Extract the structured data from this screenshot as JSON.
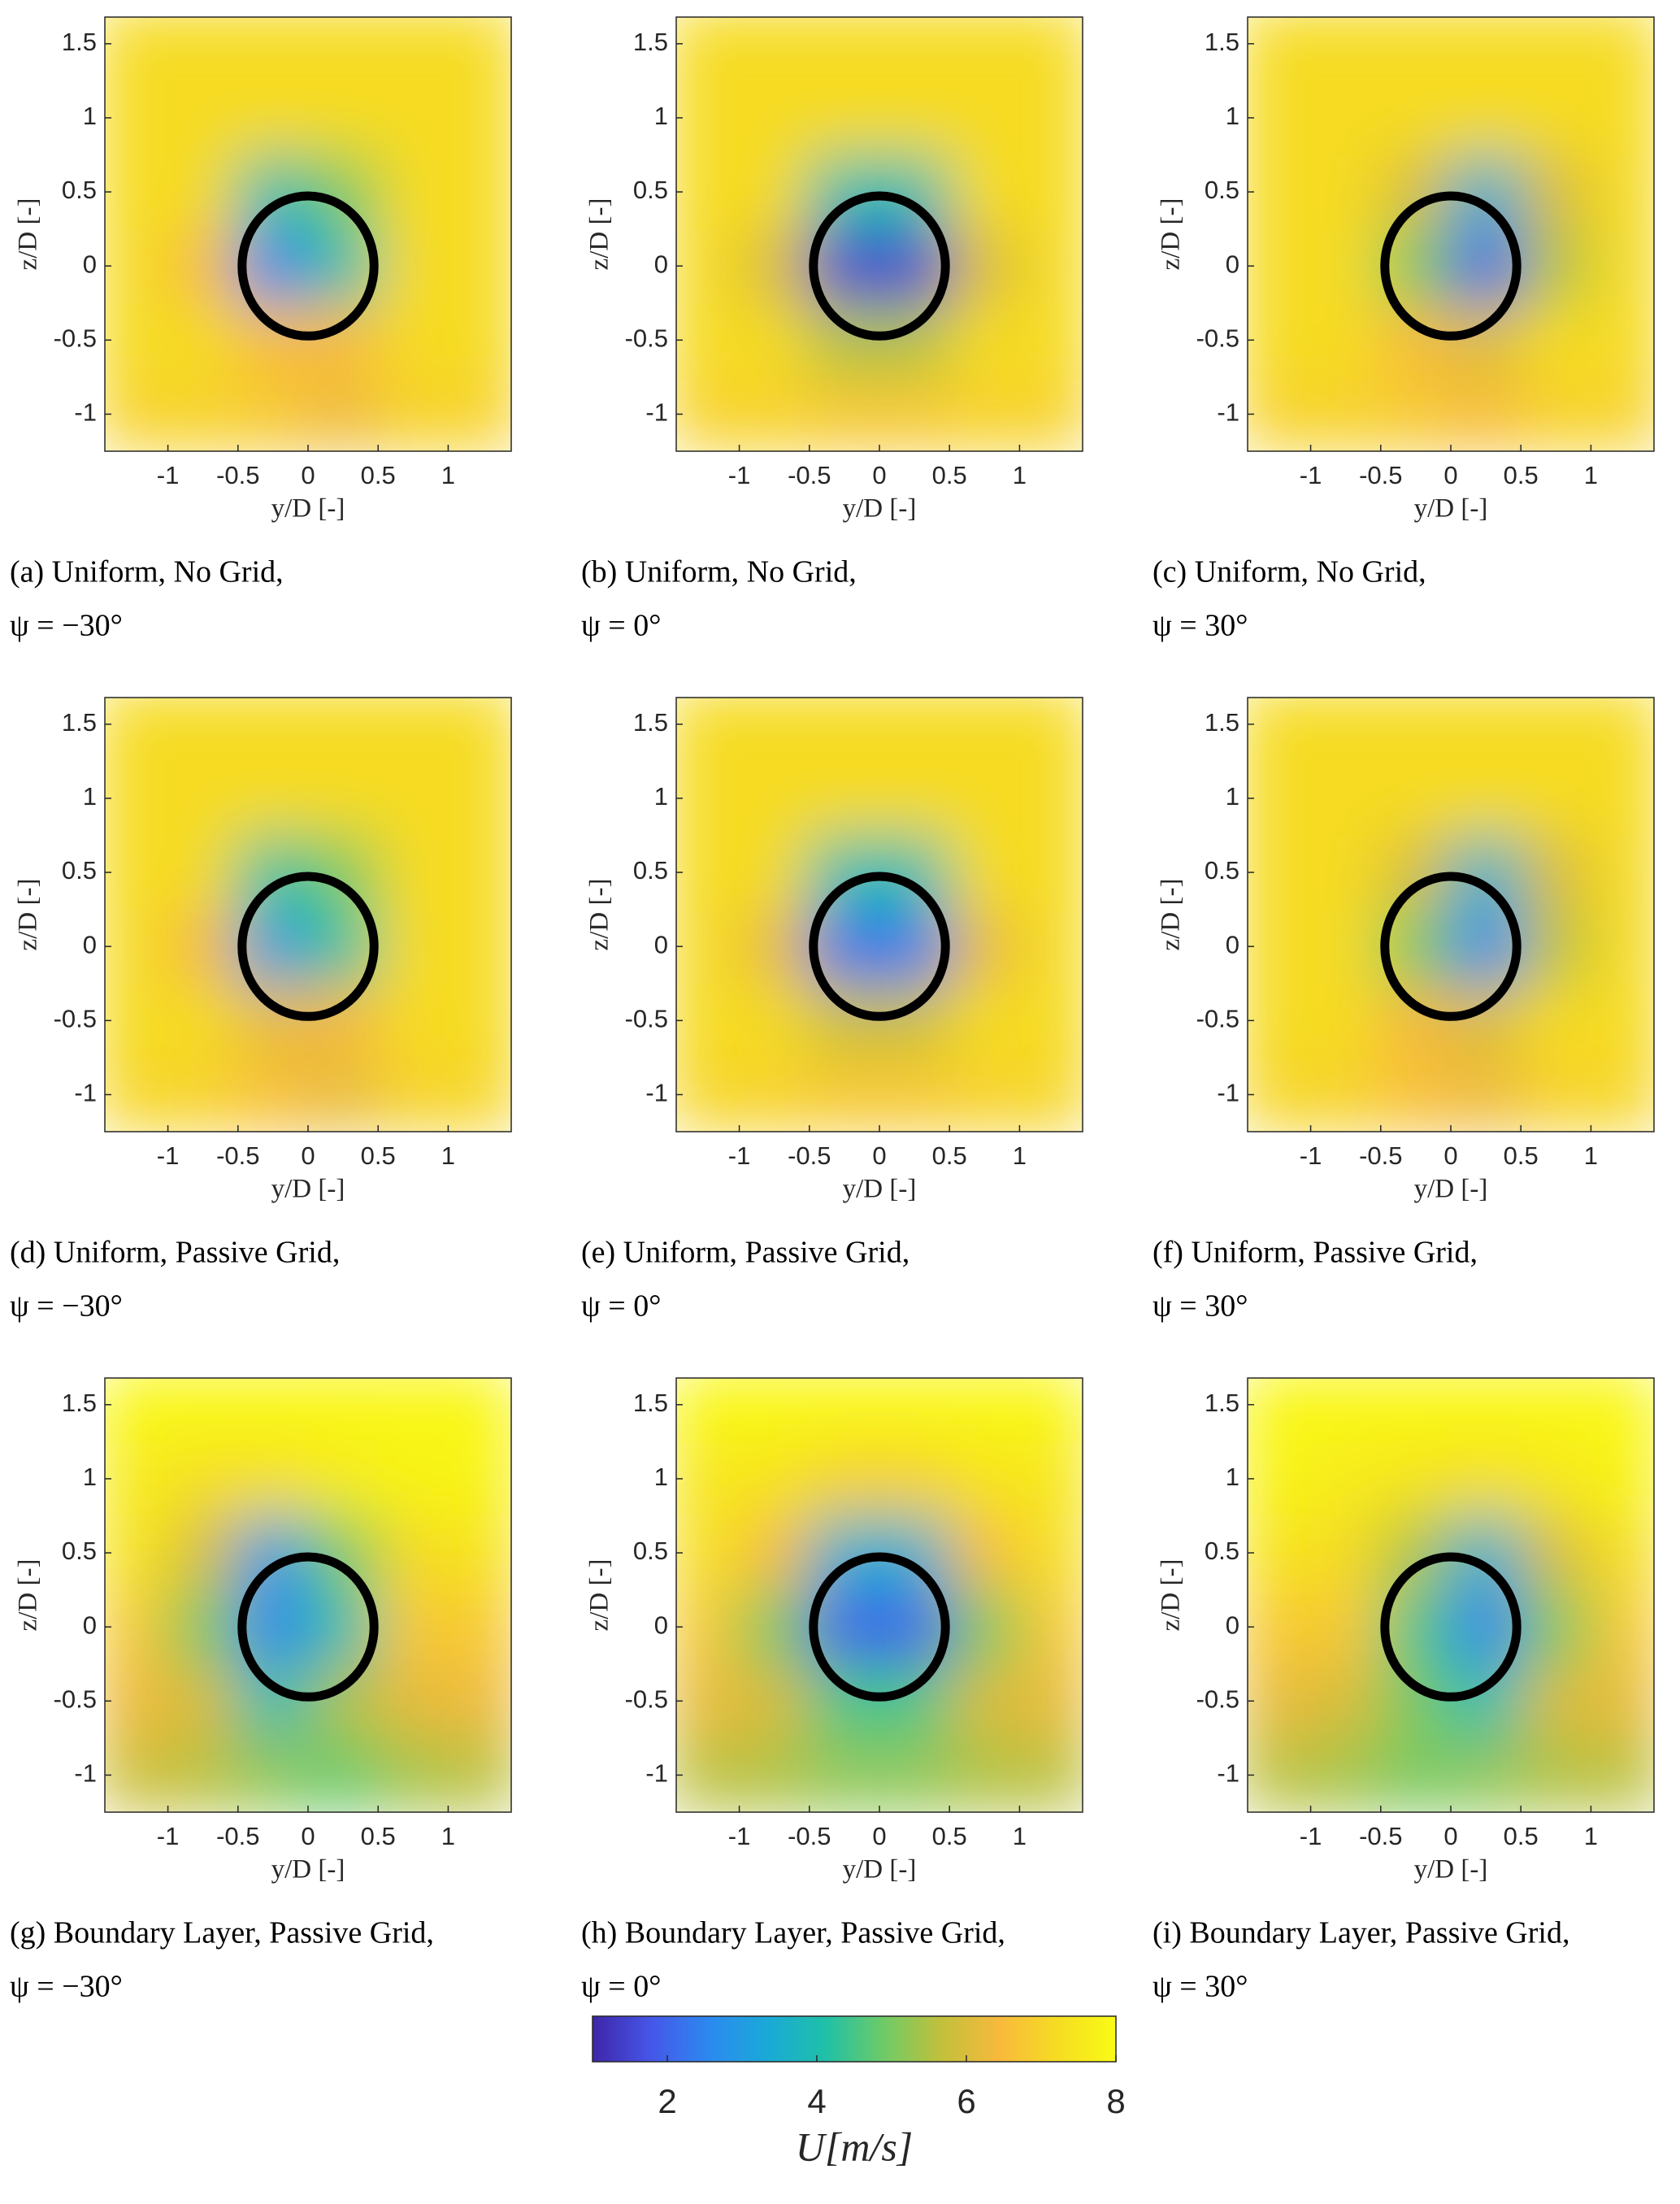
{
  "chart_data": [
    {
      "type": "contour",
      "caption": "(a) Uniform, No Grid,",
      "subcaption": "ψ = −30°",
      "xlabel": "y/D [-]",
      "ylabel": "z/D [-]",
      "xlim": [
        -1.45,
        1.45
      ],
      "ylim": [
        -1.25,
        1.68
      ],
      "xticks": [
        -1,
        -0.5,
        0,
        0.5,
        1
      ],
      "yticks": [
        -1,
        -0.5,
        0,
        0.5,
        1,
        1.5
      ],
      "x": [
        -1.25,
        -0.75,
        -0.25,
        0.25,
        0.75,
        1.25
      ],
      "y": [
        -1,
        -0.5,
        0,
        0.5,
        1,
        1.5
      ],
      "z": [
        [
          7,
          7,
          6.8,
          6.3,
          7,
          7
        ],
        [
          7.2,
          7.2,
          6.5,
          6.5,
          7.2,
          7.2
        ],
        [
          7.2,
          6.5,
          2.5,
          4,
          7.2,
          7.2
        ],
        [
          7.2,
          7.2,
          4,
          5,
          7.2,
          7.2
        ],
        [
          7.2,
          7.2,
          7.2,
          7.2,
          7.2,
          7.2
        ],
        [
          7.2,
          7.2,
          7.2,
          7.2,
          7.2,
          7.2
        ]
      ]
    },
    {
      "type": "contour",
      "caption": "(b) Uniform, No Grid,",
      "subcaption": "ψ = 0°",
      "xlabel": "y/D [-]",
      "ylabel": "z/D [-]",
      "xlim": [
        -1.45,
        1.45
      ],
      "ylim": [
        -1.25,
        1.68
      ],
      "xticks": [
        -1,
        -0.5,
        0,
        0.5,
        1
      ],
      "yticks": [
        -1,
        -0.5,
        0,
        0.5,
        1,
        1.5
      ],
      "x": [
        -1.25,
        -0.75,
        -0.25,
        0.25,
        0.75,
        1.25
      ],
      "y": [
        -1,
        -0.5,
        0,
        0.5,
        1,
        1.5
      ],
      "z": [
        [
          7,
          7,
          6.8,
          6.8,
          7,
          7
        ],
        [
          7.2,
          7.2,
          5.5,
          5.5,
          7.2,
          7.2
        ],
        [
          7.2,
          6,
          1.5,
          1.5,
          6,
          7.2
        ],
        [
          7.2,
          7.2,
          4,
          4,
          7.2,
          7.2
        ],
        [
          7.2,
          7.2,
          7.2,
          7.2,
          7.2,
          7.2
        ],
        [
          7.2,
          7.2,
          7.2,
          7.2,
          7.2,
          7.2
        ]
      ]
    },
    {
      "type": "contour",
      "caption": "(c) Uniform, No Grid,",
      "subcaption": "ψ = 30°",
      "xlabel": "y/D [-]",
      "ylabel": "z/D [-]",
      "xlim": [
        -1.45,
        1.45
      ],
      "ylim": [
        -1.25,
        1.68
      ],
      "xticks": [
        -1,
        -0.5,
        0,
        0.5,
        1
      ],
      "yticks": [
        -1,
        -0.5,
        0,
        0.5,
        1,
        1.5
      ],
      "x": [
        -1.25,
        -0.75,
        -0.25,
        0.25,
        0.75,
        1.25
      ],
      "y": [
        -1,
        -0.5,
        0,
        0.5,
        1,
        1.5
      ],
      "z": [
        [
          7,
          7,
          6.8,
          6.5,
          7,
          7
        ],
        [
          7.2,
          7.2,
          6.5,
          6,
          7.2,
          7.2
        ],
        [
          7.2,
          7.2,
          5,
          2,
          5.5,
          7.2
        ],
        [
          7.2,
          7.2,
          6,
          3.5,
          6,
          7.2
        ],
        [
          7.2,
          7.2,
          7.2,
          7.2,
          7.2,
          7.2
        ],
        [
          7.2,
          7.2,
          7.2,
          7.2,
          7.2,
          7.2
        ]
      ]
    },
    {
      "type": "contour",
      "caption": "(d) Uniform, Passive Grid,",
      "subcaption": "ψ = −30°",
      "xlabel": "y/D [-]",
      "ylabel": "z/D [-]",
      "xlim": [
        -1.45,
        1.45
      ],
      "ylim": [
        -1.25,
        1.68
      ],
      "xticks": [
        -1,
        -0.5,
        0,
        0.5,
        1
      ],
      "yticks": [
        -1,
        -0.5,
        0,
        0.5,
        1,
        1.5
      ],
      "x": [
        -1.25,
        -0.75,
        -0.25,
        0.25,
        0.75,
        1.25
      ],
      "y": [
        -1,
        -0.5,
        0,
        0.5,
        1,
        1.5
      ],
      "z": [
        [
          7.1,
          7,
          6.6,
          6.2,
          7,
          7.1
        ],
        [
          7.2,
          7.2,
          6.2,
          6.4,
          7.2,
          7.2
        ],
        [
          7.2,
          6.4,
          3,
          4.2,
          7.2,
          7.2
        ],
        [
          7.2,
          7.2,
          4.2,
          5,
          7.2,
          7.2
        ],
        [
          7.2,
          7.2,
          7.2,
          7.2,
          7.2,
          7.2
        ],
        [
          7.2,
          7.2,
          7.2,
          7.2,
          7.2,
          7.2
        ]
      ]
    },
    {
      "type": "contour",
      "caption": "(e) Uniform, Passive Grid,",
      "subcaption": "ψ = 0°",
      "xlabel": "y/D [-]",
      "ylabel": "z/D [-]",
      "xlim": [
        -1.45,
        1.45
      ],
      "ylim": [
        -1.25,
        1.68
      ],
      "xticks": [
        -1,
        -0.5,
        0,
        0.5,
        1
      ],
      "yticks": [
        -1,
        -0.5,
        0,
        0.5,
        1,
        1.5
      ],
      "x": [
        -1.25,
        -0.75,
        -0.25,
        0.25,
        0.75,
        1.25
      ],
      "y": [
        -1,
        -0.5,
        0,
        0.5,
        1,
        1.5
      ],
      "z": [
        [
          7.1,
          7,
          6.8,
          6.8,
          7,
          7.1
        ],
        [
          7.2,
          7.2,
          5.8,
          5.8,
          7.2,
          7.2
        ],
        [
          7.2,
          6.2,
          2.2,
          2.3,
          6.2,
          7.2
        ],
        [
          7.2,
          7.2,
          4,
          4,
          7.2,
          7.2
        ],
        [
          7.2,
          7.2,
          7.2,
          7.2,
          7.2,
          7.2
        ],
        [
          7.2,
          7.2,
          7.2,
          7.2,
          7.2,
          7.2
        ]
      ]
    },
    {
      "type": "contour",
      "caption": "(f) Uniform, Passive Grid,",
      "subcaption": "ψ = 30°",
      "xlabel": "y/D [-]",
      "ylabel": "z/D [-]",
      "xlim": [
        -1.45,
        1.45
      ],
      "ylim": [
        -1.25,
        1.68
      ],
      "xticks": [
        -1,
        -0.5,
        0,
        0.5,
        1
      ],
      "yticks": [
        -1,
        -0.5,
        0,
        0.5,
        1,
        1.5
      ],
      "x": [
        -1.25,
        -0.75,
        -0.25,
        0.25,
        0.75,
        1.25
      ],
      "y": [
        -1,
        -0.5,
        0,
        0.5,
        1,
        1.5
      ],
      "z": [
        [
          7.1,
          7,
          6.6,
          6.3,
          7,
          7.1
        ],
        [
          7.2,
          7.2,
          6.4,
          6,
          7.2,
          7.2
        ],
        [
          7.2,
          7.2,
          5,
          2.6,
          5.6,
          7.2
        ],
        [
          7.2,
          7.2,
          6,
          3.6,
          6,
          7.2
        ],
        [
          7.2,
          7.2,
          7.2,
          7.2,
          7.2,
          7.2
        ],
        [
          7.2,
          7.2,
          7.2,
          7.2,
          7.2,
          7.2
        ]
      ]
    },
    {
      "type": "contour",
      "caption": "(g) Boundary Layer, Passive Grid,",
      "subcaption": "ψ = −30°",
      "xlabel": "y/D [-]",
      "ylabel": "z/D [-]",
      "xlim": [
        -1.45,
        1.45
      ],
      "ylim": [
        -1.25,
        1.68
      ],
      "xticks": [
        -1,
        -0.5,
        0,
        0.5,
        1
      ],
      "yticks": [
        -1,
        -0.5,
        0,
        0.5,
        1,
        1.5
      ],
      "x": [
        -1.25,
        -0.75,
        -0.25,
        0.25,
        0.75,
        1.25
      ],
      "y": [
        -1,
        -0.5,
        0,
        0.5,
        1,
        1.5
      ],
      "z": [
        [
          5.8,
          5.6,
          5.2,
          4.8,
          5.4,
          5.6
        ],
        [
          6.3,
          6,
          4,
          5.5,
          6.2,
          6.3
        ],
        [
          6.8,
          5,
          2.5,
          4,
          6.8,
          6.8
        ],
        [
          7.4,
          6,
          3,
          5,
          7.2,
          7.4
        ],
        [
          7.6,
          7.3,
          7.3,
          7.6,
          7.8,
          7.8
        ],
        [
          7.9,
          7.9,
          7.9,
          7.9,
          7.9,
          7.9
        ]
      ]
    },
    {
      "type": "contour",
      "caption": "(h) Boundary Layer, Passive Grid,",
      "subcaption": "ψ = 0°",
      "xlabel": "y/D [-]",
      "ylabel": "z/D [-]",
      "xlim": [
        -1.45,
        1.45
      ],
      "ylim": [
        -1.25,
        1.68
      ],
      "xticks": [
        -1,
        -0.5,
        0,
        0.5,
        1
      ],
      "yticks": [
        -1,
        -0.5,
        0,
        0.5,
        1,
        1.5
      ],
      "x": [
        -1.25,
        -0.75,
        -0.25,
        0.25,
        0.75,
        1.25
      ],
      "y": [
        -1,
        -0.5,
        0,
        0.5,
        1,
        1.5
      ],
      "z": [
        [
          5.6,
          5.5,
          5.2,
          5.2,
          5.5,
          5.6
        ],
        [
          6.2,
          6,
          4.5,
          4.5,
          6,
          6.2
        ],
        [
          6.8,
          5,
          2,
          2,
          5,
          6.8
        ],
        [
          7.3,
          6.5,
          3.5,
          3.5,
          6.5,
          7.3
        ],
        [
          7.5,
          7.4,
          7,
          7,
          7.4,
          7.5
        ],
        [
          7.9,
          7.9,
          7.9,
          7.9,
          7.9,
          7.9
        ]
      ]
    },
    {
      "type": "contour",
      "caption": "(i) Boundary Layer, Passive Grid,",
      "subcaption": "ψ = 30°",
      "xlabel": "y/D [-]",
      "ylabel": "z/D [-]",
      "xlim": [
        -1.45,
        1.45
      ],
      "ylim": [
        -1.25,
        1.68
      ],
      "xticks": [
        -1,
        -0.5,
        0,
        0.5,
        1
      ],
      "yticks": [
        -1,
        -0.5,
        0,
        0.5,
        1,
        1.5
      ],
      "x": [
        -1.25,
        -0.75,
        -0.25,
        0.25,
        0.75,
        1.25
      ],
      "y": [
        -1,
        -0.5,
        0,
        0.5,
        1,
        1.5
      ],
      "z": [
        [
          5.6,
          5.4,
          5,
          5.2,
          5.5,
          5.6
        ],
        [
          6.2,
          6,
          5,
          4,
          6,
          6.2
        ],
        [
          6.8,
          6.8,
          4.5,
          2.5,
          5,
          6.8
        ],
        [
          7.4,
          7.2,
          5.5,
          3.5,
          6,
          7.3
        ],
        [
          7.8,
          7.6,
          7.4,
          7.3,
          7.5,
          7.8
        ],
        [
          7.9,
          7.9,
          7.9,
          7.9,
          7.9,
          7.9
        ]
      ]
    },
    {
      "type": "colorbar",
      "label": "U[m/s]",
      "clim": [
        1,
        8
      ],
      "ticks": [
        2,
        4,
        6,
        8
      ],
      "colormap": [
        "#3e26a8",
        "#4656e8",
        "#2c89f0",
        "#1aa9d8",
        "#1fc0a8",
        "#6dcb67",
        "#c2c03b",
        "#f8b93c",
        "#f6dc22",
        "#f9fb15"
      ]
    }
  ]
}
